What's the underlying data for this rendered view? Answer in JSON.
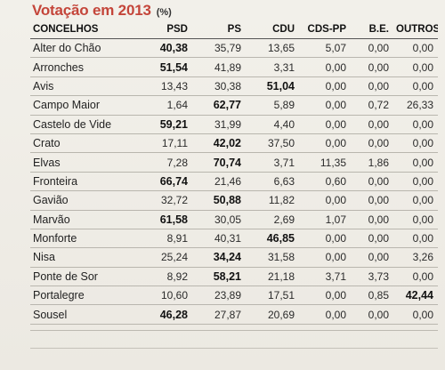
{
  "header": {
    "title": "Votação em 2013",
    "unit": "(%)"
  },
  "table": {
    "columns": [
      "CONCELHOS",
      "PSD",
      "PS",
      "CDU",
      "CDS-PP",
      "B.E.",
      "OUTROS"
    ],
    "rows": [
      {
        "name": "Alter do Chão",
        "values": [
          "40,38",
          "35,79",
          "13,65",
          "5,07",
          "0,00",
          "0,00"
        ],
        "winner": 0
      },
      {
        "name": "Arronches",
        "values": [
          "51,54",
          "41,89",
          "3,31",
          "0,00",
          "0,00",
          "0,00"
        ],
        "winner": 0
      },
      {
        "name": "Avis",
        "values": [
          "13,43",
          "30,38",
          "51,04",
          "0,00",
          "0,00",
          "0,00"
        ],
        "winner": 2
      },
      {
        "name": "Campo Maior",
        "values": [
          "1,64",
          "62,77",
          "5,89",
          "0,00",
          "0,72",
          "26,33"
        ],
        "winner": 1
      },
      {
        "name": "Castelo de Vide",
        "values": [
          "59,21",
          "31,99",
          "4,40",
          "0,00",
          "0,00",
          "0,00"
        ],
        "winner": 0
      },
      {
        "name": "Crato",
        "values": [
          "17,11",
          "42,02",
          "37,50",
          "0,00",
          "0,00",
          "0,00"
        ],
        "winner": 1
      },
      {
        "name": "Elvas",
        "values": [
          "7,28",
          "70,74",
          "3,71",
          "11,35",
          "1,86",
          "0,00"
        ],
        "winner": 1
      },
      {
        "name": "Fronteira",
        "values": [
          "66,74",
          "21,46",
          "6,63",
          "0,60",
          "0,00",
          "0,00"
        ],
        "winner": 0
      },
      {
        "name": "Gavião",
        "values": [
          "32,72",
          "50,88",
          "11,82",
          "0,00",
          "0,00",
          "0,00"
        ],
        "winner": 1
      },
      {
        "name": "Marvão",
        "values": [
          "61,58",
          "30,05",
          "2,69",
          "1,07",
          "0,00",
          "0,00"
        ],
        "winner": 0
      },
      {
        "name": "Monforte",
        "values": [
          "8,91",
          "40,31",
          "46,85",
          "0,00",
          "0,00",
          "0,00"
        ],
        "winner": 2
      },
      {
        "name": "Nisa",
        "values": [
          "25,24",
          "34,24",
          "31,58",
          "0,00",
          "0,00",
          "3,26"
        ],
        "winner": 1
      },
      {
        "name": "Ponte de Sor",
        "values": [
          "8,92",
          "58,21",
          "21,18",
          "3,71",
          "3,73",
          "0,00"
        ],
        "winner": 1
      },
      {
        "name": "Portalegre",
        "values": [
          "10,60",
          "23,89",
          "17,51",
          "0,00",
          "0,85",
          "42,44"
        ],
        "winner": 5
      },
      {
        "name": "Sousel",
        "values": [
          "46,28",
          "27,87",
          "20,69",
          "0,00",
          "0,00",
          "0,00"
        ],
        "winner": 0
      }
    ]
  },
  "colors": {
    "title": "#c4453a",
    "background": "#efede6",
    "rule": "#b9b6ae"
  }
}
